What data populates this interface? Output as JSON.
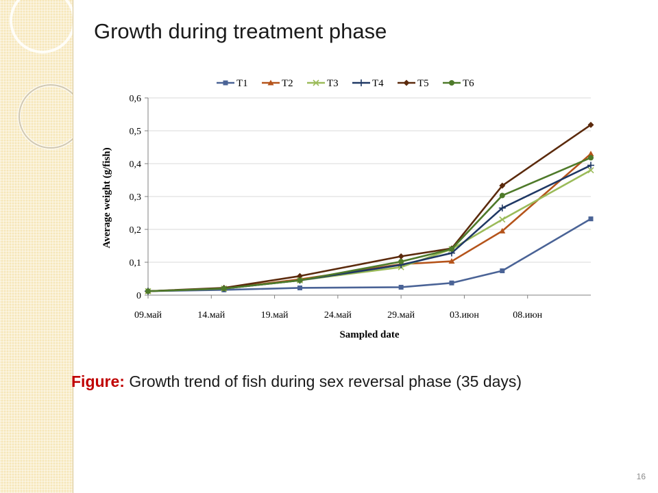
{
  "slide": {
    "title": "Growth during treatment phase",
    "caption_label": "Figure:",
    "caption_text": " Growth trend of fish during sex reversal phase (35 days)",
    "slide_number": "16"
  },
  "chart_data": {
    "type": "line",
    "title": "",
    "xlabel": "Sampled date",
    "ylabel": "Average weight (g/fish)",
    "x_tick_labels": [
      "09.май",
      "14.май",
      "19.май",
      "24.май",
      "29.май",
      "03.июн",
      "08.июн"
    ],
    "y_tick_labels": [
      "0",
      "0,1",
      "0,2",
      "0,3",
      "0,4",
      "0,5",
      "0,6"
    ],
    "ylim": [
      0,
      0.6
    ],
    "x_range_days": [
      0,
      35
    ],
    "x_sample_days": [
      0,
      6,
      12,
      20,
      24,
      28,
      35
    ],
    "grid": "horizontal",
    "legend_position": "top",
    "series": [
      {
        "name": "T1",
        "color": "#4a6396",
        "marker": "square",
        "values": [
          0.012,
          0.016,
          0.022,
          0.024,
          0.037,
          0.074,
          0.232
        ]
      },
      {
        "name": "T2",
        "color": "#b5541b",
        "marker": "triangle",
        "values": [
          0.012,
          0.02,
          0.048,
          0.094,
          0.103,
          0.195,
          0.43
        ]
      },
      {
        "name": "T3",
        "color": "#9bbb59",
        "marker": "x",
        "values": [
          0.012,
          0.02,
          0.045,
          0.085,
          0.14,
          0.23,
          0.38
        ]
      },
      {
        "name": "T4",
        "color": "#1f3864",
        "marker": "plus",
        "values": [
          0.012,
          0.02,
          0.045,
          0.092,
          0.128,
          0.265,
          0.395
        ]
      },
      {
        "name": "T5",
        "color": "#5b2a0c",
        "marker": "diamond",
        "values": [
          0.012,
          0.022,
          0.058,
          0.118,
          0.142,
          0.333,
          0.518
        ]
      },
      {
        "name": "T6",
        "color": "#4e7a2a",
        "marker": "circle",
        "values": [
          0.012,
          0.02,
          0.045,
          0.102,
          0.14,
          0.303,
          0.418
        ]
      }
    ]
  }
}
